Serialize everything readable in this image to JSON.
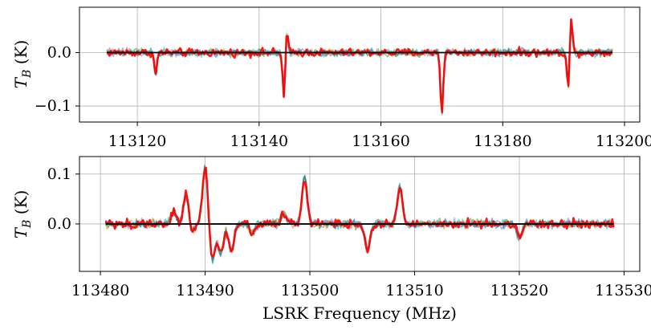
{
  "chart_data": [
    {
      "type": "line",
      "panel": "top",
      "xlim": [
        113110.5,
        113202.5
      ],
      "ylim": [
        -0.13,
        0.085
      ],
      "xticks": [
        113120,
        113140,
        113160,
        113180,
        113200
      ],
      "yticks": [
        -0.1,
        0.0
      ],
      "ytick_labels": [
        "−0.1",
        "0.0"
      ],
      "xlabel": "",
      "ylabel": "T_B (K)",
      "grid": true,
      "x_range": [
        113115,
        113198
      ],
      "baseline": 0.0,
      "features": [
        {
          "x": 113123,
          "y": -0.04
        },
        {
          "x": 113144.1,
          "y": -0.09
        },
        {
          "x": 113144.5,
          "y": 0.048
        },
        {
          "x": 113170,
          "y": -0.115
        },
        {
          "x": 113190.8,
          "y": -0.075
        },
        {
          "x": 113191.2,
          "y": 0.073
        }
      ],
      "series_colors": [
        "#ff0000",
        "#ff7f0e",
        "#9467bd",
        "#17becf",
        "#2ca02c",
        "#1f77b4"
      ],
      "baseline_color": "#000000"
    },
    {
      "type": "line",
      "panel": "bottom",
      "xlim": [
        113478,
        113531.5
      ],
      "ylim": [
        -0.095,
        0.135
      ],
      "xticks": [
        113480,
        113490,
        113500,
        113510,
        113520,
        113530
      ],
      "yticks": [
        0.0,
        0.1
      ],
      "ytick_labels": [
        "0.0",
        "0.1"
      ],
      "xlabel": "LSRK Frequency (MHz)",
      "ylabel": "T_B (K)",
      "grid": true,
      "x_range": [
        113480.5,
        113529
      ],
      "baseline": 0.0,
      "features": [
        {
          "x": 113487,
          "y": 0.025
        },
        {
          "x": 113488.2,
          "y": 0.06
        },
        {
          "x": 113488.7,
          "y": -0.02
        },
        {
          "x": 113490.0,
          "y": 0.115
        },
        {
          "x": 113490.7,
          "y": -0.075
        },
        {
          "x": 113491.5,
          "y": -0.06
        },
        {
          "x": 113492.5,
          "y": -0.055
        },
        {
          "x": 113494.5,
          "y": -0.02
        },
        {
          "x": 113497.5,
          "y": 0.02
        },
        {
          "x": 113499.5,
          "y": 0.095
        },
        {
          "x": 113505.5,
          "y": -0.055
        },
        {
          "x": 113508.6,
          "y": 0.075
        },
        {
          "x": 113520,
          "y": -0.028
        }
      ],
      "series_colors": [
        "#ff0000",
        "#ff7f0e",
        "#9467bd",
        "#17becf",
        "#2ca02c",
        "#1f77b4"
      ],
      "baseline_color": "#000000"
    }
  ]
}
